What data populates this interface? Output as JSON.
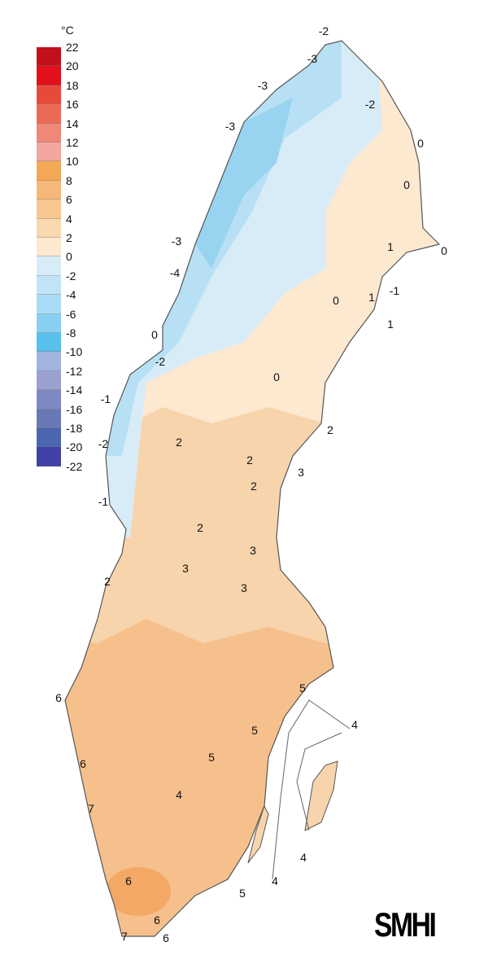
{
  "legend": {
    "unit": "°C",
    "labels": [
      "22",
      "20",
      "18",
      "16",
      "14",
      "12",
      "10",
      "8",
      "6",
      "4",
      "2",
      "0",
      "-2",
      "-4",
      "-6",
      "-8",
      "-10",
      "-12",
      "-14",
      "-16",
      "-18",
      "-20",
      "-22"
    ],
    "colors": [
      "#c0101a",
      "#e2101a",
      "#e84a3a",
      "#ec6a55",
      "#f08878",
      "#f2a69e",
      "#f4a855",
      "#f6b878",
      "#f8c890",
      "#fad8b0",
      "#fde8d0",
      "#d8ecf8",
      "#c0e4f6",
      "#a8dcf4",
      "#88d0f2",
      "#58c0ec",
      "#a0b4de",
      "#9aa0d0",
      "#8088c4",
      "#6878b4",
      "#4a66b0",
      "#4040a8"
    ]
  },
  "map": {
    "contour_labels": [
      "-2",
      "-3",
      "-3",
      "-2",
      "-3",
      "0",
      "0",
      "-3",
      "0",
      "-4",
      "1",
      "-1",
      "0",
      "1",
      "1",
      "0",
      "-2",
      "0",
      "-1",
      "2",
      "-2",
      "2",
      "2",
      "3",
      "2",
      "-1",
      "2",
      "3",
      "3",
      "2",
      "3",
      "6",
      "5",
      "5",
      "4",
      "5",
      "6",
      "4",
      "7",
      "4",
      "4",
      "5",
      "6",
      "6",
      "7",
      "6"
    ]
  },
  "logo": "SMHI"
}
